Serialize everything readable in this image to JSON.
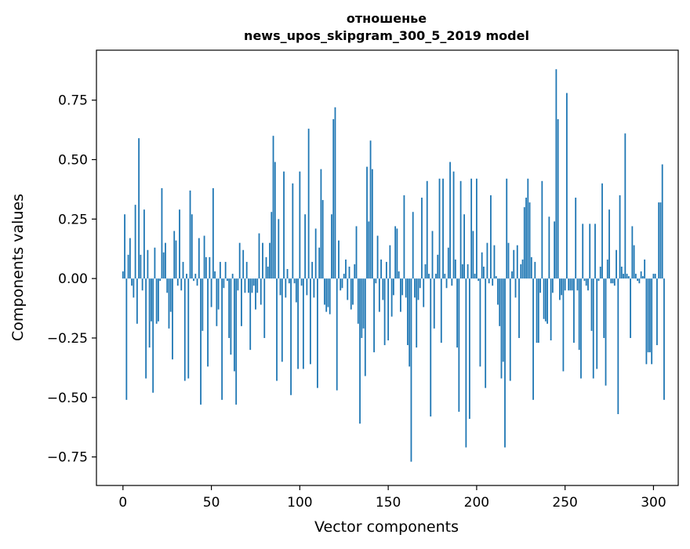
{
  "chart_data": {
    "type": "bar",
    "title_line1": "отношенье",
    "title_line2": "news_upos_skipgram_300_5_2019 model",
    "xlabel": "Vector components",
    "ylabel": "Components values",
    "xlim": [
      -15,
      314
    ],
    "ylim": [
      -0.87,
      0.96
    ],
    "xticks": [
      0,
      50,
      100,
      150,
      200,
      250,
      300
    ],
    "yticks": [
      -0.75,
      -0.5,
      -0.25,
      0.0,
      0.25,
      0.5,
      0.75
    ],
    "ytick_labels": [
      "−0.75",
      "−0.50",
      "−0.25",
      "0.00",
      "0.25",
      "0.50",
      "0.75"
    ],
    "bar_color": "#1f77b4",
    "grid": false,
    "values": [
      0.03,
      0.27,
      -0.51,
      0.1,
      0.17,
      -0.03,
      -0.08,
      0.31,
      -0.19,
      0.59,
      0.1,
      -0.05,
      0.29,
      -0.42,
      0.12,
      -0.29,
      -0.18,
      -0.48,
      0.13,
      -0.19,
      -0.18,
      -0.01,
      0.38,
      0.11,
      0.15,
      -0.06,
      -0.21,
      -0.14,
      -0.34,
      0.2,
      0.16,
      -0.03,
      0.29,
      -0.05,
      0.07,
      -0.43,
      0.02,
      -0.42,
      0.37,
      0.27,
      -0.01,
      0.02,
      -0.03,
      0.17,
      -0.53,
      -0.22,
      0.18,
      0.09,
      -0.37,
      0.09,
      -0.12,
      0.38,
      0.03,
      -0.2,
      -0.13,
      0.07,
      -0.51,
      -0.04,
      0.07,
      -0.01,
      -0.25,
      -0.32,
      0.02,
      -0.39,
      -0.53,
      -0.05,
      0.15,
      -0.2,
      0.12,
      -0.06,
      0.07,
      -0.06,
      -0.3,
      -0.06,
      -0.03,
      -0.13,
      -0.06,
      0.19,
      -0.11,
      0.15,
      -0.25,
      0.09,
      0.05,
      0.15,
      0.28,
      0.6,
      0.49,
      -0.43,
      0.25,
      -0.07,
      -0.35,
      0.45,
      -0.08,
      0.04,
      -0.02,
      -0.49,
      0.4,
      -0.02,
      -0.1,
      -0.38,
      0.45,
      -0.03,
      -0.38,
      0.27,
      -0.07,
      0.63,
      -0.36,
      0.07,
      -0.08,
      0.21,
      -0.46,
      0.13,
      0.46,
      0.33,
      -0.11,
      -0.14,
      -0.12,
      -0.15,
      0.27,
      0.67,
      0.72,
      -0.47,
      0.16,
      -0.05,
      -0.04,
      0.02,
      0.08,
      -0.09,
      0.05,
      -0.13,
      -0.11,
      0.06,
      0.22,
      -0.19,
      -0.61,
      -0.25,
      -0.21,
      -0.41,
      0.47,
      0.24,
      0.58,
      0.46,
      -0.31,
      -0.02,
      0.18,
      -0.14,
      0.08,
      -0.09,
      -0.28,
      0.07,
      -0.26,
      0.14,
      -0.16,
      -0.07,
      0.22,
      0.21,
      0.03,
      -0.14,
      -0.07,
      0.35,
      -0.08,
      -0.28,
      -0.37,
      -0.77,
      0.28,
      -0.08,
      -0.29,
      -0.09,
      -0.04,
      0.34,
      -0.12,
      0.06,
      0.41,
      0.02,
      -0.58,
      0.2,
      -0.21,
      0.02,
      0.1,
      0.42,
      -0.27,
      0.42,
      0.02,
      -0.04,
      0.13,
      0.49,
      -0.03,
      0.45,
      0.08,
      -0.29,
      -0.56,
      0.41,
      0.06,
      0.27,
      -0.71,
      0.06,
      -0.59,
      0.42,
      0.2,
      0.02,
      0.42,
      -0.01,
      -0.37,
      0.11,
      0.05,
      -0.46,
      0.15,
      -0.02,
      0.35,
      -0.03,
      0.14,
      0.01,
      -0.11,
      -0.2,
      -0.42,
      -0.35,
      -0.71,
      0.42,
      0.15,
      -0.43,
      0.03,
      0.12,
      -0.08,
      0.14,
      -0.25,
      0.06,
      0.08,
      0.3,
      0.34,
      0.42,
      0.32,
      0.09,
      -0.51,
      0.07,
      -0.27,
      -0.27,
      -0.06,
      0.41,
      -0.17,
      -0.18,
      -0.19,
      0.26,
      -0.26,
      -0.06,
      0.24,
      0.88,
      0.67,
      -0.09,
      -0.07,
      -0.39,
      -0.05,
      0.78,
      -0.05,
      -0.05,
      -0.05,
      -0.27,
      0.34,
      -0.05,
      -0.3,
      -0.42,
      0.23,
      -0.01,
      -0.03,
      -0.05,
      0.23,
      -0.22,
      -0.42,
      0.23,
      -0.38,
      -0.01,
      0.05,
      0.4,
      -0.25,
      -0.45,
      0.08,
      0.29,
      -0.02,
      -0.02,
      -0.03,
      0.12,
      -0.57,
      0.35,
      0.05,
      0.02,
      0.61,
      0.02,
      0.01,
      -0.25,
      0.22,
      0.14,
      0.02,
      -0.01,
      -0.02,
      0.03,
      0.01,
      0.08,
      -0.36,
      -0.31,
      -0.31,
      -0.36,
      0.02,
      0.02,
      -0.28,
      0.32,
      0.32,
      0.48,
      -0.51
    ]
  }
}
